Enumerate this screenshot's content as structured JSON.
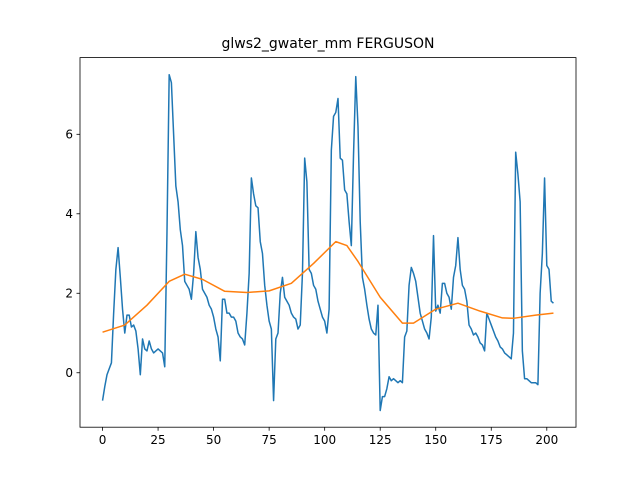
{
  "chart_data": {
    "type": "line",
    "title": "glws2_gwater_mm FERGUSON",
    "xlim": [
      -10.15,
      213.15
    ],
    "ylim": [
      -1.37,
      7.93
    ],
    "xticks": [
      0,
      25,
      50,
      75,
      100,
      125,
      150,
      175,
      200
    ],
    "yticks": [
      0,
      2,
      4,
      6
    ],
    "series": [
      {
        "color": "#1f77b4",
        "x": [
          0,
          1,
          2,
          3,
          4,
          5,
          6,
          7,
          8,
          9,
          10,
          11,
          12,
          13,
          14,
          15,
          16,
          17,
          18,
          19,
          20,
          21,
          22,
          23,
          24,
          25,
          26,
          27,
          28,
          29,
          30,
          31,
          32,
          33,
          34,
          35,
          36,
          37,
          38,
          39,
          40,
          41,
          42,
          43,
          44,
          45,
          46,
          47,
          48,
          49,
          50,
          51,
          52,
          53,
          54,
          55,
          56,
          57,
          58,
          59,
          60,
          61,
          62,
          63,
          64,
          65,
          66,
          67,
          68,
          69,
          70,
          71,
          72,
          73,
          74,
          75,
          76,
          77,
          78,
          79,
          80,
          81,
          82,
          83,
          84,
          85,
          86,
          87,
          88,
          89,
          90,
          91,
          92,
          93,
          94,
          95,
          96,
          97,
          98,
          99,
          100,
          101,
          102,
          103,
          104,
          105,
          106,
          107,
          108,
          109,
          110,
          111,
          112,
          113,
          114,
          115,
          116,
          117,
          118,
          119,
          120,
          121,
          122,
          123,
          124,
          125,
          126,
          127,
          128,
          129,
          130,
          131,
          132,
          133,
          134,
          135,
          136,
          137,
          138,
          139,
          140,
          141,
          142,
          143,
          144,
          145,
          146,
          147,
          148,
          149,
          150,
          151,
          152,
          153,
          154,
          155,
          156,
          157,
          158,
          159,
          160,
          161,
          162,
          163,
          164,
          165,
          166,
          167,
          168,
          169,
          170,
          171,
          172,
          173,
          174,
          175,
          176,
          177,
          178,
          179,
          180,
          181,
          182,
          183,
          184,
          185,
          186,
          187,
          188,
          189,
          190,
          191,
          192,
          193,
          194,
          195,
          196,
          197,
          198,
          199,
          200,
          201,
          202,
          203
        ],
        "values": [
          -0.7,
          -0.35,
          -0.05,
          0.1,
          0.25,
          1.5,
          2.6,
          3.15,
          2.4,
          1.6,
          1.0,
          1.45,
          1.45,
          1.15,
          1.2,
          1.05,
          0.6,
          -0.05,
          0.85,
          0.6,
          0.55,
          0.8,
          0.6,
          0.5,
          0.55,
          0.6,
          0.55,
          0.5,
          0.15,
          3.5,
          7.5,
          7.3,
          6.0,
          4.7,
          4.3,
          3.6,
          3.2,
          2.3,
          2.2,
          2.1,
          1.85,
          2.5,
          3.55,
          2.9,
          2.6,
          2.1,
          2.0,
          1.9,
          1.7,
          1.6,
          1.4,
          1.1,
          0.9,
          0.3,
          1.85,
          1.85,
          1.5,
          1.5,
          1.4,
          1.4,
          1.3,
          1.0,
          0.9,
          0.85,
          0.7,
          1.5,
          2.5,
          4.9,
          4.5,
          4.2,
          4.15,
          3.3,
          3.0,
          2.2,
          1.7,
          1.3,
          1.1,
          -0.7,
          0.85,
          1.0,
          2.0,
          2.4,
          1.9,
          1.8,
          1.7,
          1.5,
          1.4,
          1.35,
          1.1,
          1.2,
          2.5,
          5.4,
          4.8,
          2.6,
          2.5,
          2.2,
          2.1,
          1.8,
          1.6,
          1.4,
          1.3,
          1.0,
          1.6,
          5.6,
          6.45,
          6.55,
          6.9,
          5.4,
          5.35,
          4.6,
          4.5,
          3.8,
          3.2,
          5.5,
          7.45,
          6.2,
          3.8,
          2.4,
          2.1,
          1.7,
          1.35,
          1.1,
          1.0,
          0.95,
          1.7,
          -0.95,
          -0.6,
          -0.6,
          -0.4,
          -0.1,
          -0.2,
          -0.15,
          -0.2,
          -0.25,
          -0.2,
          -0.25,
          0.9,
          1.05,
          2.2,
          2.65,
          2.5,
          2.3,
          1.9,
          1.5,
          1.3,
          1.1,
          1.0,
          0.85,
          1.4,
          3.45,
          1.55,
          1.7,
          1.5,
          2.25,
          2.25,
          2.0,
          1.9,
          1.6,
          2.4,
          2.7,
          3.4,
          2.6,
          2.2,
          2.1,
          1.8,
          1.2,
          1.1,
          0.95,
          1.0,
          0.9,
          0.75,
          0.7,
          0.55,
          1.5,
          1.35,
          1.2,
          1.05,
          0.9,
          0.8,
          0.65,
          0.6,
          0.5,
          0.45,
          0.4,
          0.35,
          1.0,
          5.55,
          5.0,
          4.3,
          0.55,
          -0.15,
          -0.15,
          -0.2,
          -0.25,
          -0.25,
          -0.25,
          -0.3,
          2.0,
          3.0,
          4.9,
          2.7,
          2.6,
          1.8,
          1.75
        ]
      },
      {
        "color": "#ff7f0e",
        "x": [
          0,
          10,
          20,
          30,
          37,
          45,
          55,
          65,
          75,
          85,
          95,
          105,
          110,
          115,
          125,
          135,
          140,
          150,
          160,
          170,
          180,
          185,
          195,
          203
        ],
        "values": [
          1.02,
          1.2,
          1.7,
          2.3,
          2.48,
          2.35,
          2.05,
          2.02,
          2.06,
          2.25,
          2.75,
          3.3,
          3.2,
          2.8,
          1.9,
          1.25,
          1.25,
          1.6,
          1.75,
          1.55,
          1.38,
          1.37,
          1.45,
          1.5
        ]
      }
    ]
  }
}
